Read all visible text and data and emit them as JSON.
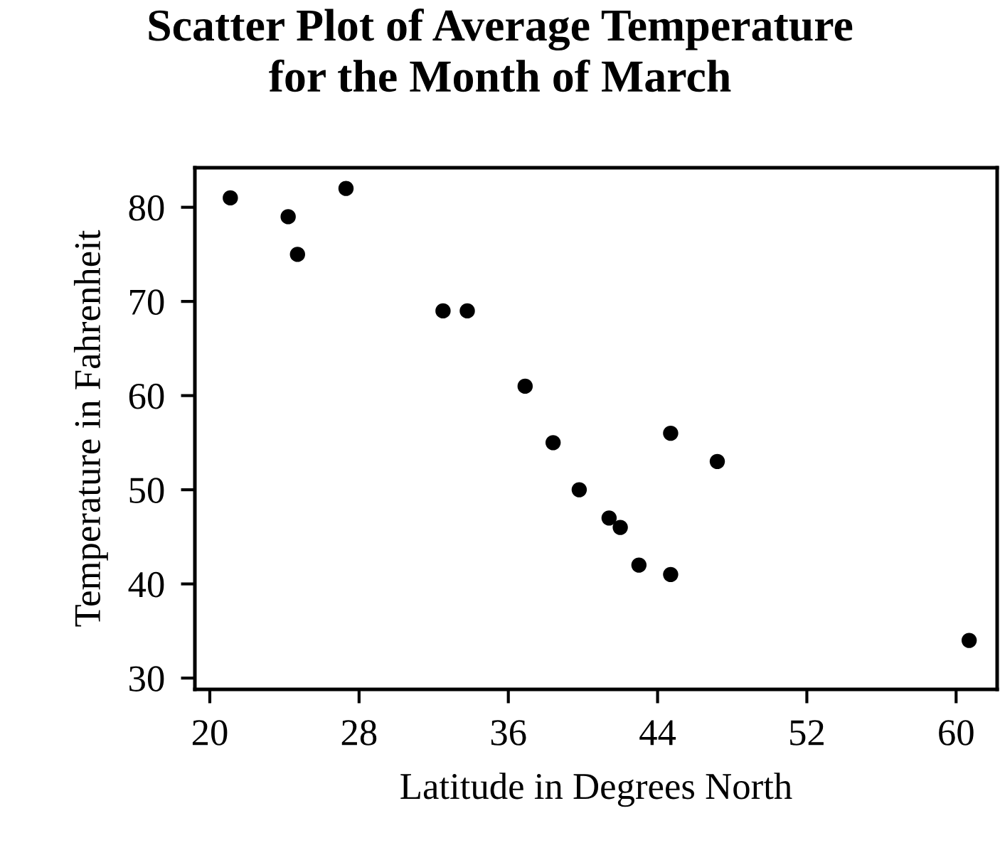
{
  "chart_data": {
    "type": "scatter",
    "title": "Scatter Plot of Average Temperature\nfor the Month of March",
    "xlabel": "Latitude in Degrees North",
    "ylabel": "Temperature in Fahrenheit",
    "x": [
      21.1,
      24.2,
      24.7,
      27.3,
      32.5,
      33.8,
      36.9,
      38.4,
      39.8,
      41.4,
      42.0,
      43.0,
      44.7,
      44.7,
      47.2,
      60.7
    ],
    "series": [
      {
        "color": "#000000",
        "values": [
          81,
          79,
          75,
          82,
          69,
          69,
          61,
          55,
          50,
          47,
          46,
          42,
          56,
          41,
          53,
          34
        ]
      }
    ],
    "xlim": [
      19.2,
      62.2
    ],
    "ylim": [
      28.8,
      84.2
    ],
    "xticks": [
      20,
      28,
      36,
      44,
      52,
      60
    ],
    "yticks": [
      30,
      40,
      50,
      60,
      70,
      80
    ],
    "grid": false,
    "marker": "circle"
  }
}
